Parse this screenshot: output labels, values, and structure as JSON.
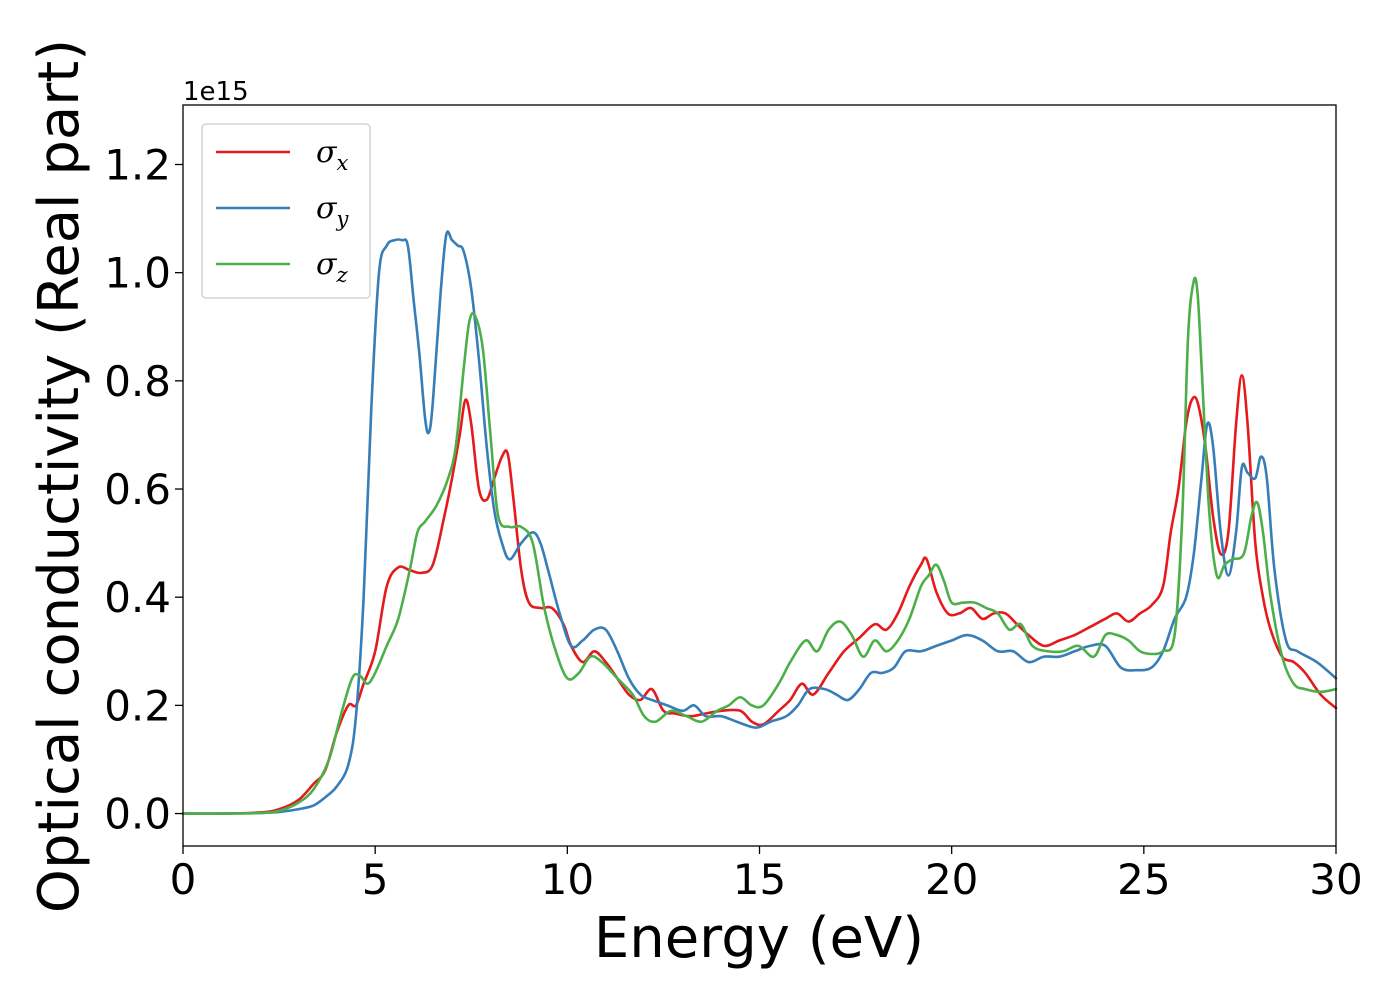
{
  "chart_data": {
    "type": "line",
    "xlabel": "Energy (eV)",
    "ylabel": "Optical conductivity (Real part)",
    "y_offset_label": "1e15",
    "xlim": [
      0,
      30
    ],
    "ylim": [
      -0.06,
      1.31
    ],
    "y_scale_factor": "1e15",
    "xticks": [
      0,
      5,
      10,
      15,
      20,
      25,
      30
    ],
    "yticks": [
      0.0,
      0.2,
      0.4,
      0.6,
      0.8,
      1.0,
      1.2
    ],
    "xtick_labels": [
      "0",
      "5",
      "10",
      "15",
      "20",
      "25",
      "30"
    ],
    "ytick_labels": [
      "0.0",
      "0.2",
      "0.4",
      "0.6",
      "0.8",
      "1.0",
      "1.2"
    ],
    "grid": false,
    "legend_position": "upper-left",
    "series": [
      {
        "name": "σx",
        "symbol": "σ",
        "subscript": "x",
        "color": "#e41a1c",
        "x": [
          0,
          1,
          2,
          2.5,
          3,
          3.4,
          3.7,
          4.0,
          4.3,
          4.5,
          4.7,
          5.0,
          5.3,
          5.6,
          5.9,
          6.2,
          6.5,
          6.8,
          7.0,
          7.2,
          7.35,
          7.5,
          7.7,
          7.9,
          8.1,
          8.3,
          8.45,
          8.6,
          8.8,
          9.0,
          9.3,
          9.6,
          9.9,
          10.1,
          10.4,
          10.7,
          11.0,
          11.3,
          11.6,
          11.9,
          12.2,
          12.5,
          12.8,
          13.2,
          13.6,
          14.0,
          14.5,
          14.8,
          15.1,
          15.5,
          15.8,
          16.1,
          16.4,
          16.8,
          17.2,
          17.6,
          18.0,
          18.3,
          18.6,
          18.9,
          19.2,
          19.35,
          19.6,
          19.9,
          20.2,
          20.5,
          20.8,
          21.1,
          21.4,
          21.7,
          22.0,
          22.4,
          22.8,
          23.2,
          23.6,
          24.0,
          24.3,
          24.6,
          24.9,
          25.2,
          25.5,
          25.7,
          25.9,
          26.1,
          26.25,
          26.4,
          26.6,
          26.8,
          27.0,
          27.2,
          27.4,
          27.55,
          27.7,
          27.9,
          28.1,
          28.3,
          28.6,
          28.9,
          29.2,
          29.6,
          30.0
        ],
        "y": [
          0,
          0,
          0.002,
          0.008,
          0.025,
          0.055,
          0.08,
          0.15,
          0.2,
          0.2,
          0.24,
          0.3,
          0.42,
          0.455,
          0.45,
          0.445,
          0.46,
          0.55,
          0.62,
          0.7,
          0.765,
          0.72,
          0.6,
          0.58,
          0.62,
          0.66,
          0.665,
          0.58,
          0.45,
          0.39,
          0.38,
          0.38,
          0.35,
          0.31,
          0.28,
          0.3,
          0.28,
          0.25,
          0.22,
          0.21,
          0.23,
          0.19,
          0.185,
          0.18,
          0.185,
          0.19,
          0.19,
          0.17,
          0.165,
          0.19,
          0.21,
          0.24,
          0.22,
          0.26,
          0.3,
          0.325,
          0.35,
          0.34,
          0.37,
          0.42,
          0.46,
          0.47,
          0.41,
          0.37,
          0.37,
          0.38,
          0.36,
          0.37,
          0.37,
          0.35,
          0.33,
          0.31,
          0.32,
          0.33,
          0.345,
          0.36,
          0.37,
          0.355,
          0.37,
          0.385,
          0.42,
          0.52,
          0.6,
          0.72,
          0.765,
          0.76,
          0.68,
          0.55,
          0.48,
          0.52,
          0.72,
          0.81,
          0.72,
          0.5,
          0.4,
          0.34,
          0.29,
          0.28,
          0.26,
          0.22,
          0.195
        ]
      },
      {
        "name": "σy",
        "symbol": "σ",
        "subscript": "y",
        "color": "#377eb8",
        "x": [
          0,
          1,
          2,
          2.5,
          3,
          3.4,
          3.7,
          4.0,
          4.3,
          4.5,
          4.7,
          4.9,
          5.1,
          5.3,
          5.5,
          5.7,
          5.85,
          6.0,
          6.15,
          6.3,
          6.4,
          6.5,
          6.7,
          6.85,
          7.0,
          7.15,
          7.3,
          7.5,
          7.7,
          7.9,
          8.1,
          8.3,
          8.5,
          8.8,
          9.1,
          9.3,
          9.5,
          9.8,
          10.1,
          10.4,
          10.7,
          11.0,
          11.3,
          11.6,
          11.9,
          12.2,
          12.6,
          13.0,
          13.3,
          13.6,
          14.0,
          14.4,
          14.8,
          15.0,
          15.3,
          15.7,
          16.0,
          16.3,
          16.7,
          17.0,
          17.3,
          17.6,
          17.9,
          18.2,
          18.5,
          18.8,
          19.2,
          19.6,
          20.0,
          20.4,
          20.8,
          21.2,
          21.6,
          22.0,
          22.4,
          22.8,
          23.2,
          23.6,
          24.0,
          24.4,
          24.8,
          25.2,
          25.5,
          25.8,
          26.1,
          26.3,
          26.5,
          26.65,
          26.8,
          27.0,
          27.2,
          27.4,
          27.55,
          27.7,
          27.9,
          28.05,
          28.2,
          28.4,
          28.7,
          29.0,
          29.5,
          30.0
        ],
        "y": [
          0,
          0,
          0.001,
          0.003,
          0.008,
          0.015,
          0.03,
          0.05,
          0.09,
          0.18,
          0.4,
          0.75,
          1.0,
          1.05,
          1.06,
          1.06,
          1.05,
          0.95,
          0.85,
          0.73,
          0.705,
          0.76,
          0.96,
          1.07,
          1.06,
          1.05,
          1.04,
          0.97,
          0.84,
          0.68,
          0.56,
          0.5,
          0.47,
          0.5,
          0.52,
          0.5,
          0.45,
          0.37,
          0.31,
          0.32,
          0.34,
          0.34,
          0.3,
          0.25,
          0.22,
          0.21,
          0.2,
          0.19,
          0.2,
          0.18,
          0.18,
          0.17,
          0.16,
          0.16,
          0.17,
          0.18,
          0.2,
          0.23,
          0.23,
          0.22,
          0.21,
          0.23,
          0.26,
          0.26,
          0.27,
          0.3,
          0.3,
          0.31,
          0.32,
          0.33,
          0.32,
          0.3,
          0.3,
          0.28,
          0.29,
          0.29,
          0.3,
          0.31,
          0.31,
          0.27,
          0.265,
          0.27,
          0.3,
          0.36,
          0.4,
          0.48,
          0.62,
          0.72,
          0.68,
          0.52,
          0.44,
          0.52,
          0.64,
          0.63,
          0.62,
          0.66,
          0.62,
          0.45,
          0.32,
          0.3,
          0.28,
          0.25
        ]
      },
      {
        "name": "σz",
        "symbol": "σ",
        "subscript": "z",
        "color": "#4daf4a",
        "x": [
          0,
          1,
          2,
          2.5,
          3,
          3.4,
          3.8,
          4.1,
          4.4,
          4.6,
          4.8,
          5.0,
          5.3,
          5.6,
          5.9,
          6.1,
          6.3,
          6.6,
          6.9,
          7.1,
          7.3,
          7.45,
          7.6,
          7.8,
          8.0,
          8.2,
          8.5,
          8.8,
          9.1,
          9.4,
          9.7,
          10.0,
          10.3,
          10.6,
          10.9,
          11.3,
          11.7,
          12.0,
          12.3,
          12.7,
          13.1,
          13.5,
          13.9,
          14.2,
          14.5,
          14.8,
          15.1,
          15.5,
          15.8,
          16.2,
          16.5,
          16.8,
          17.1,
          17.4,
          17.7,
          18.0,
          18.3,
          18.6,
          18.9,
          19.2,
          19.4,
          19.6,
          19.8,
          20.0,
          20.3,
          20.6,
          20.9,
          21.2,
          21.5,
          21.8,
          22.1,
          22.5,
          22.9,
          23.3,
          23.7,
          24.0,
          24.3,
          24.6,
          24.9,
          25.2,
          25.5,
          25.8,
          26.0,
          26.15,
          26.3,
          26.4,
          26.5,
          26.7,
          26.9,
          27.1,
          27.3,
          27.6,
          27.8,
          27.95,
          28.1,
          28.3,
          28.6,
          28.9,
          29.2,
          29.6,
          30.0
        ],
        "y": [
          0,
          0,
          0.001,
          0.005,
          0.02,
          0.045,
          0.1,
          0.18,
          0.25,
          0.255,
          0.24,
          0.26,
          0.31,
          0.36,
          0.45,
          0.52,
          0.54,
          0.57,
          0.62,
          0.68,
          0.82,
          0.91,
          0.92,
          0.86,
          0.7,
          0.55,
          0.53,
          0.53,
          0.5,
          0.38,
          0.3,
          0.25,
          0.26,
          0.29,
          0.28,
          0.25,
          0.22,
          0.18,
          0.17,
          0.19,
          0.18,
          0.17,
          0.19,
          0.2,
          0.215,
          0.2,
          0.2,
          0.24,
          0.28,
          0.32,
          0.3,
          0.34,
          0.355,
          0.33,
          0.29,
          0.32,
          0.3,
          0.32,
          0.36,
          0.42,
          0.44,
          0.46,
          0.43,
          0.39,
          0.39,
          0.39,
          0.38,
          0.37,
          0.34,
          0.35,
          0.31,
          0.3,
          0.3,
          0.31,
          0.29,
          0.33,
          0.33,
          0.32,
          0.3,
          0.295,
          0.3,
          0.33,
          0.55,
          0.88,
          0.985,
          0.96,
          0.83,
          0.56,
          0.44,
          0.46,
          0.47,
          0.48,
          0.55,
          0.575,
          0.52,
          0.4,
          0.29,
          0.24,
          0.23,
          0.225,
          0.23
        ]
      }
    ]
  }
}
